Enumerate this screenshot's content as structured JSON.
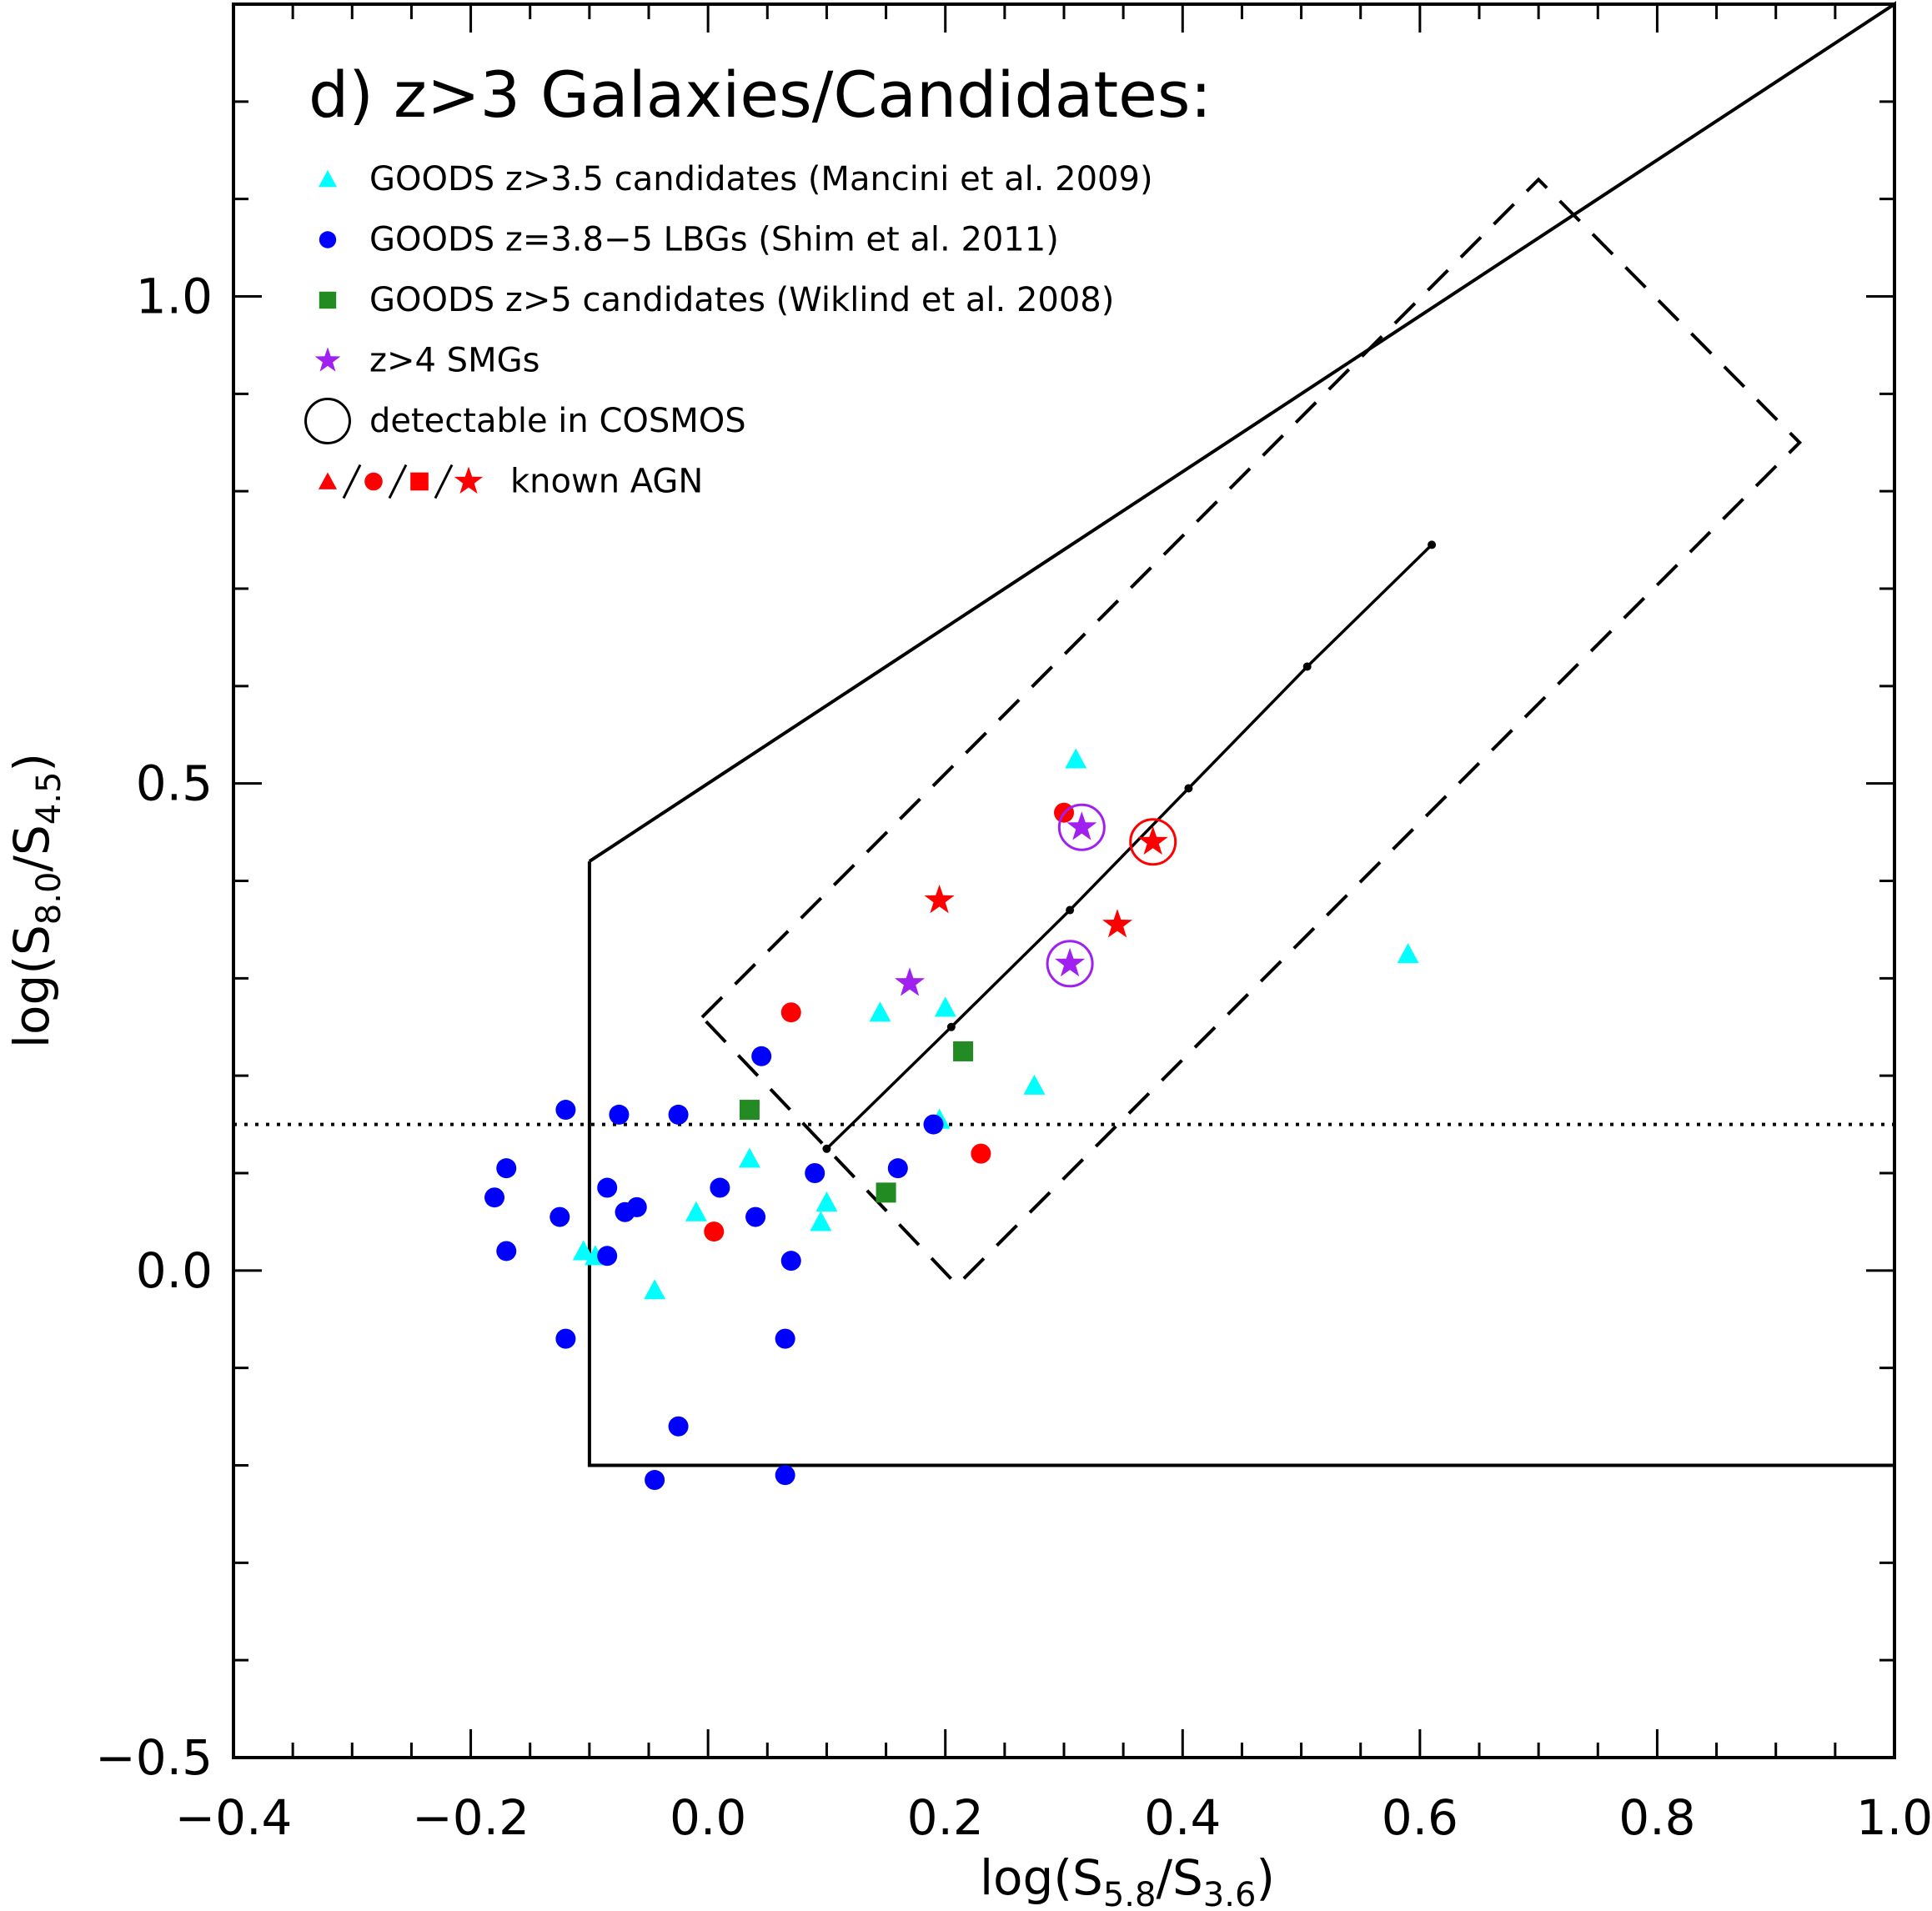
{
  "chart_data": {
    "type": "scatter",
    "title": "d) z>3 Galaxies/Candidates:",
    "xlabel": {
      "base": "log(S",
      "sub1": "5.8",
      "mid": "/S",
      "sub2": "3.6",
      "end": ")"
    },
    "ylabel": {
      "base": "log(S",
      "sub1": "8.0",
      "mid": "/S",
      "sub2": "4.5",
      "end": ")"
    },
    "xlim": [
      -0.4,
      1.0
    ],
    "ylim": [
      -0.5,
      1.3
    ],
    "x_ticks": [
      {
        "value": -0.4,
        "label": "−0.4"
      },
      {
        "value": -0.2,
        "label": "−0.2"
      },
      {
        "value": 0.0,
        "label": "0.0"
      },
      {
        "value": 0.2,
        "label": "0.2"
      },
      {
        "value": 0.4,
        "label": "0.4"
      },
      {
        "value": 0.6,
        "label": "0.6"
      },
      {
        "value": 0.8,
        "label": "0.8"
      },
      {
        "value": 1.0,
        "label": "1.0"
      }
    ],
    "y_ticks": [
      {
        "value": -0.5,
        "label": "−0.5"
      },
      {
        "value": 0.0,
        "label": "0.0"
      },
      {
        "value": 0.5,
        "label": "0.5"
      },
      {
        "value": 1.0,
        "label": "1.0"
      }
    ],
    "legend": [
      {
        "label": "GOODS z>3.5 candidates (Mancini et al. 2009)",
        "marker": "triangle",
        "color": "#00FFFF"
      },
      {
        "label": "GOODS z=3.8−5 LBGs (Shim et al. 2011)",
        "marker": "circle",
        "color": "#0000FF"
      },
      {
        "label": "GOODS z>5 candidates (Wiklind et al. 2008)",
        "marker": "square",
        "color": "#228B22"
      },
      {
        "label": "z>4 SMGs",
        "marker": "star",
        "color": "#A020F0"
      },
      {
        "label": "detectable in COSMOS",
        "marker": "open-circle",
        "color": "#000000"
      },
      {
        "label": "known AGN",
        "marker": "agn-set",
        "color": "#FF0000"
      }
    ],
    "series": [
      {
        "name": "GOODS z>3.5 candidates (Mancini et al. 2009)",
        "marker": "triangle",
        "color": "#00FFFF",
        "points": [
          [
            -0.105,
            0.02
          ],
          [
            -0.095,
            0.015
          ],
          [
            -0.045,
            -0.02
          ],
          [
            -0.01,
            0.06
          ],
          [
            0.035,
            0.115
          ],
          [
            0.095,
            0.05
          ],
          [
            0.1,
            0.07
          ],
          [
            0.145,
            0.265
          ],
          [
            0.2,
            0.27
          ],
          [
            0.195,
            0.155
          ],
          [
            0.275,
            0.19
          ],
          [
            0.31,
            0.525
          ],
          [
            0.59,
            0.325
          ]
        ]
      },
      {
        "name": "GOODS z=3.8−5 LBGs (Shim et al. 2011)",
        "marker": "circle",
        "color": "#0000FF",
        "points": [
          [
            -0.18,
            0.075
          ],
          [
            -0.17,
            0.105
          ],
          [
            -0.17,
            0.02
          ],
          [
            -0.125,
            0.055
          ],
          [
            -0.12,
            0.165
          ],
          [
            -0.12,
            -0.07
          ],
          [
            -0.085,
            0.085
          ],
          [
            -0.085,
            0.015
          ],
          [
            -0.075,
            0.16
          ],
          [
            -0.07,
            0.06
          ],
          [
            -0.06,
            0.065
          ],
          [
            -0.045,
            -0.215
          ],
          [
            -0.025,
            0.16
          ],
          [
            -0.025,
            -0.16
          ],
          [
            0.01,
            0.085
          ],
          [
            0.04,
            0.055
          ],
          [
            0.045,
            0.22
          ],
          [
            0.065,
            -0.07
          ],
          [
            0.065,
            -0.21
          ],
          [
            0.07,
            0.01
          ],
          [
            0.09,
            0.1
          ],
          [
            0.16,
            0.105
          ],
          [
            0.19,
            0.15
          ]
        ]
      },
      {
        "name": "GOODS z>5 candidates (Wiklind et al. 2008)",
        "marker": "square",
        "color": "#228B22",
        "points": [
          [
            0.035,
            0.165
          ],
          [
            0.15,
            0.08
          ],
          [
            0.215,
            0.225
          ]
        ]
      },
      {
        "name": "z>4 SMGs",
        "marker": "star",
        "color": "#A020F0",
        "points": [
          [
            0.17,
            0.295
          ],
          [
            0.305,
            0.315
          ],
          [
            0.315,
            0.455
          ]
        ]
      },
      {
        "name": "known AGN",
        "marker": "circle",
        "color": "#FF0000",
        "points": [
          [
            0.005,
            0.04
          ],
          [
            0.07,
            0.265
          ],
          [
            0.23,
            0.12
          ],
          [
            0.3,
            0.47
          ]
        ]
      },
      {
        "name": "known AGN",
        "marker": "star",
        "color": "#FF0000",
        "points": [
          [
            0.195,
            0.38
          ],
          [
            0.345,
            0.355
          ],
          [
            0.375,
            0.44
          ]
        ]
      }
    ],
    "detectable_in_cosmos": [
      {
        "x": 0.305,
        "y": 0.315,
        "color": "#A020F0"
      },
      {
        "x": 0.315,
        "y": 0.455,
        "color": "#A020F0"
      },
      {
        "x": 0.375,
        "y": 0.44,
        "color": "#FF0000"
      }
    ],
    "selection_wedge": {
      "points": [
        [
          -0.1,
          0.42
        ],
        [
          -0.1,
          -0.2
        ],
        [
          1.0,
          -0.2
        ],
        [
          1.0,
          1.3
        ],
        [
          -0.1,
          0.42
        ]
      ]
    },
    "dashed_box": {
      "points": [
        [
          -0.005,
          0.26
        ],
        [
          0.7,
          1.12
        ],
        [
          0.92,
          0.85
        ],
        [
          0.21,
          -0.015
        ],
        [
          -0.005,
          0.26
        ]
      ]
    },
    "redshift_track": {
      "points": [
        [
          0.1,
          0.125
        ],
        [
          0.205,
          0.25
        ],
        [
          0.305,
          0.37
        ],
        [
          0.405,
          0.495
        ],
        [
          0.505,
          0.62
        ],
        [
          0.61,
          0.745
        ]
      ]
    },
    "dotted_line": {
      "y": 0.15
    }
  }
}
